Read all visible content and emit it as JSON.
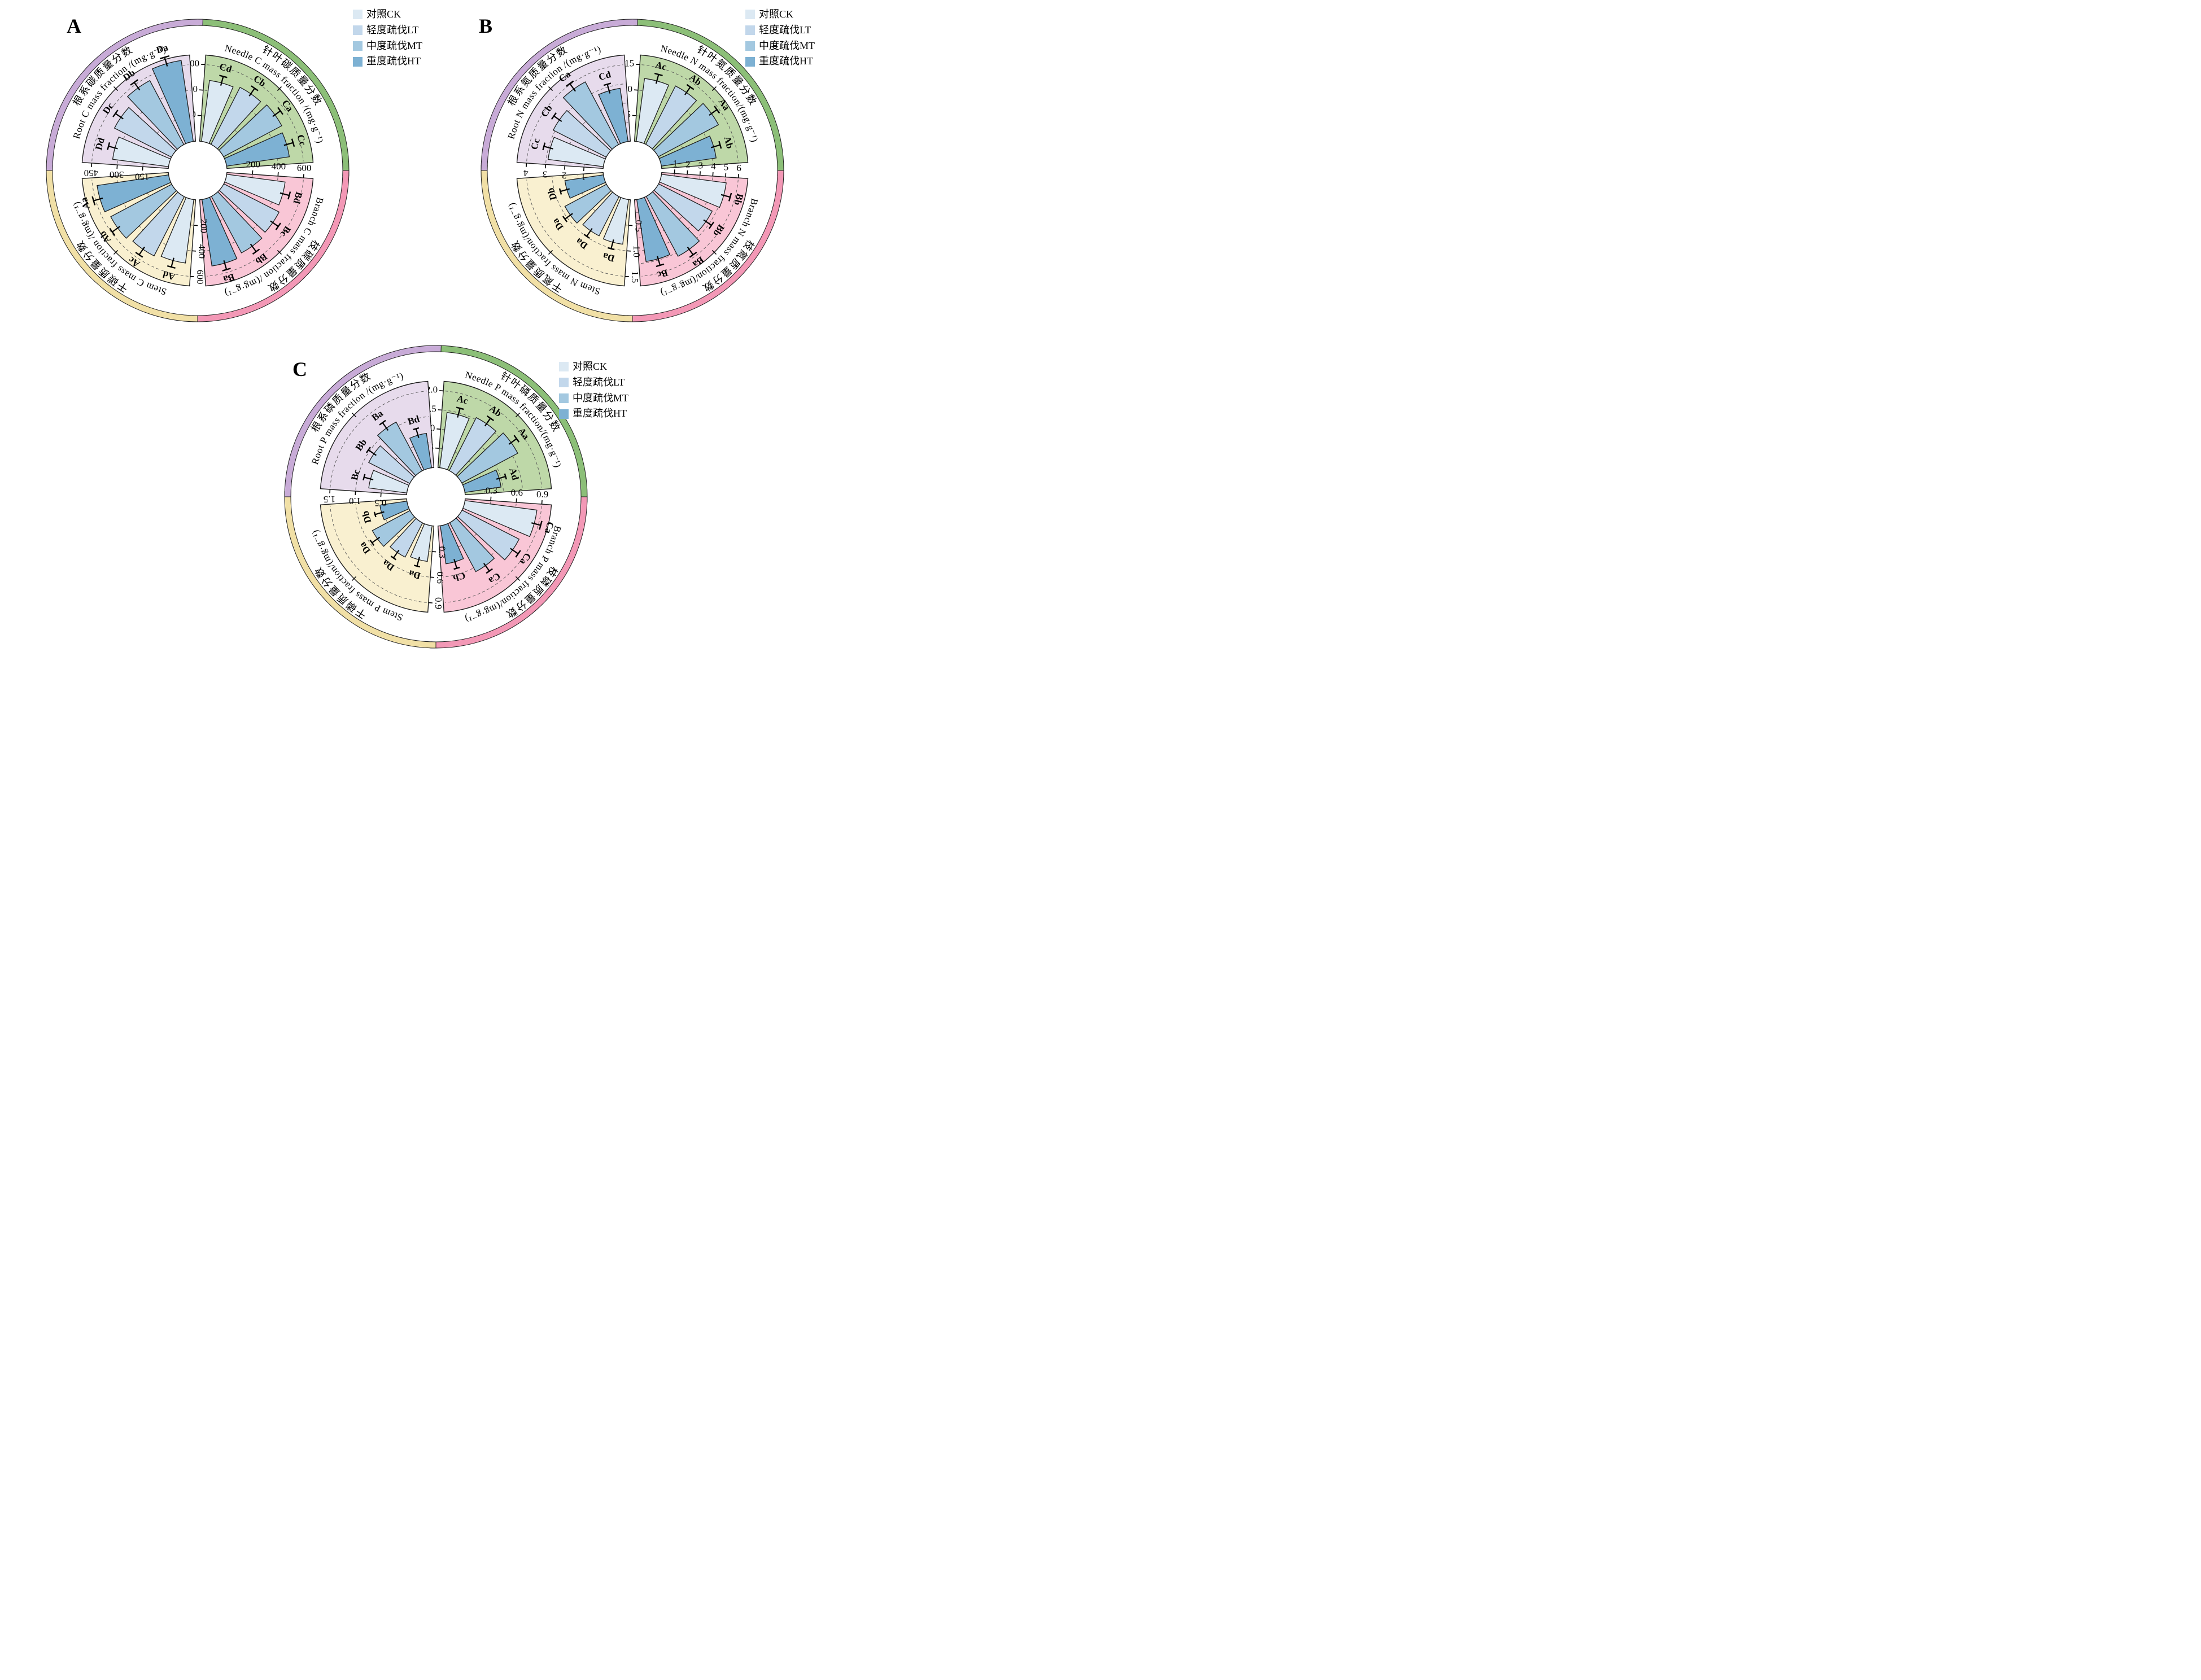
{
  "figure": {
    "panel_labels": [
      "A",
      "B",
      "C"
    ]
  },
  "legend": {
    "items": [
      {
        "code": "CK",
        "label": "对照CK",
        "color": "#dcE9f3"
      },
      {
        "code": "LT",
        "label": "轻度疏伐LT",
        "color": "#c2d7eb"
      },
      {
        "code": "MT",
        "label": "中度疏伐MT",
        "color": "#a3c8e0"
      },
      {
        "code": "HT",
        "label": "重度疏伐HT",
        "color": "#7db1d3"
      }
    ]
  },
  "colors": {
    "bars": [
      "#dce9f3",
      "#c2d7eb",
      "#a3c8e0",
      "#7db1d3"
    ],
    "stroke": "#1c1c1c",
    "grid": "#555555",
    "organs": {
      "needle": {
        "wedge": "#bed8a8",
        "band": "#8cbf78"
      },
      "branch": {
        "wedge": "#f9c6d6",
        "band": "#f398b6"
      },
      "stem": {
        "wedge": "#f9f0d0",
        "band": "#f1e0a6"
      },
      "root": {
        "wedge": "#e7dbec",
        "band": "#c8abd7"
      }
    }
  },
  "chart_data": [
    {
      "type": "polar_bar",
      "panel": "A",
      "element": "C",
      "series": [
        "CK",
        "LT",
        "MT",
        "HT"
      ],
      "sectors": [
        {
          "organ": "needle",
          "label_en": "Needle C mass fraction /(mg·g⁻¹)",
          "label_zh": "针叶碳质量分数",
          "tick_labels": [
            "200",
            "400",
            "600"
          ],
          "tick_values": [
            200,
            400,
            600
          ],
          "axis_max": 600,
          "values": [
            480,
            500,
            515,
            495
          ],
          "letters": [
            "Cd",
            "Cb",
            "Ca",
            "Cc"
          ]
        },
        {
          "organ": "branch",
          "label_en": "Branch C mass fraction /(mg·g⁻¹)",
          "label_zh": "枝碳质量分数",
          "tick_labels": [
            "200",
            "400",
            "600"
          ],
          "tick_values": [
            200,
            400,
            600
          ],
          "axis_max": 600,
          "values": [
            460,
            485,
            500,
            525
          ],
          "letters": [
            "Bd",
            "Bc",
            "Bb",
            "Ba"
          ]
        },
        {
          "organ": "stem",
          "label_en": "Stem C mass fraction /(mg·g⁻¹)",
          "label_zh": "干碳质量分数",
          "tick_labels": [
            "200",
            "400",
            "600"
          ],
          "tick_values": [
            200,
            400,
            600
          ],
          "axis_max": 600,
          "values": [
            500,
            520,
            540,
            565
          ],
          "letters": [
            "Ad",
            "Ac",
            "Ab",
            "Aa"
          ]
        },
        {
          "organ": "root",
          "label_en": "Root C mass fraction /(mg·g⁻¹)",
          "label_zh": "根系碳质量分数",
          "tick_labels": [
            "150",
            "300",
            "450"
          ],
          "tick_values": [
            150,
            300,
            450
          ],
          "axis_max": 450,
          "values": [
            330,
            375,
            425,
            480
          ],
          "letters": [
            "Dd",
            "Dc",
            "Db",
            "Da"
          ]
        }
      ]
    },
    {
      "type": "polar_bar",
      "panel": "B",
      "element": "N",
      "series": [
        "CK",
        "LT",
        "MT",
        "HT"
      ],
      "sectors": [
        {
          "organ": "needle",
          "label_en": "Needle N mass fraction/(mg·g⁻¹)",
          "label_zh": "针叶氮质量分数",
          "tick_labels": [
            "5",
            "10",
            "15"
          ],
          "tick_values": [
            5,
            10,
            15
          ],
          "axis_max": 15,
          "values": [
            12.4,
            12.8,
            13.3,
            10.8
          ],
          "letters": [
            "Ac",
            "Ab",
            "Aa",
            "Ab"
          ]
        },
        {
          "organ": "branch",
          "label_en": "Branch N mass fraction/(mg·g⁻¹)",
          "label_zh": "枝氮质量分数",
          "tick_labels": [
            "1",
            "2",
            "3",
            "4",
            "5",
            "6"
          ],
          "tick_values": [
            1,
            2,
            3,
            4,
            5,
            6
          ],
          "axis_max": 6,
          "values": [
            5.1,
            4.7,
            5.3,
            4.9
          ],
          "letters": [
            "Bb",
            "Bb",
            "Ba",
            "Bc"
          ]
        },
        {
          "organ": "stem",
          "label_en": "Stem N mass fraction/(mg·g⁻¹)",
          "label_zh": "干氮质量分数",
          "tick_labels": [
            "0.5",
            "1.0",
            "1.5"
          ],
          "tick_values": [
            0.5,
            1.0,
            1.5
          ],
          "axis_max": 1.5,
          "values": [
            0.88,
            0.86,
            0.92,
            0.76
          ],
          "letters": [
            "Da",
            "Da",
            "Da",
            "Db"
          ]
        },
        {
          "organ": "root",
          "label_en": "Root N mass fraction /(mg·g⁻¹)",
          "label_zh": "根系氮质量分数",
          "tick_labels": [
            "1",
            "2",
            "3",
            "4"
          ],
          "tick_values": [
            1,
            2,
            3,
            4
          ],
          "axis_max": 4,
          "values": [
            2.9,
            3.1,
            3.7,
            2.8
          ],
          "letters": [
            "Cc",
            "Cb",
            "Ca",
            "Cd"
          ]
        }
      ]
    },
    {
      "type": "polar_bar",
      "panel": "C",
      "element": "P",
      "series": [
        "CK",
        "LT",
        "MT",
        "HT"
      ],
      "sectors": [
        {
          "organ": "needle",
          "label_en": "Needle P mass fraction/(mg·g⁻¹)",
          "label_zh": "针叶磷质量分数",
          "tick_labels": [
            "0.5",
            "1.0",
            "1.5",
            "2.0"
          ],
          "tick_values": [
            0.5,
            1.0,
            1.5,
            2.0
          ],
          "axis_max": 2.0,
          "values": [
            1.45,
            1.55,
            1.65,
            0.95
          ],
          "letters": [
            "Ac",
            "Ab",
            "Aa",
            "Ad"
          ]
        },
        {
          "organ": "branch",
          "label_en": "Branch P mass fraction/(mg·g⁻¹)",
          "label_zh": "枝磷质量分数",
          "tick_labels": [
            "0.3",
            "0.6",
            "0.9"
          ],
          "tick_values": [
            0.3,
            0.6,
            0.9
          ],
          "axis_max": 0.9,
          "values": [
            0.85,
            0.75,
            0.65,
            0.45
          ],
          "letters": [
            "Ca",
            "Ca",
            "Ca",
            "Cb"
          ]
        },
        {
          "organ": "stem",
          "label_en": "Stem P mass fraction/(mg·g⁻¹)",
          "label_zh": "干磷质量分数",
          "tick_labels": [
            "0.3",
            "0.6",
            "0.9"
          ],
          "tick_values": [
            0.3,
            0.6,
            0.9
          ],
          "axis_max": 0.9,
          "values": [
            0.42,
            0.45,
            0.5,
            0.32
          ],
          "letters": [
            "Da",
            "Da",
            "Da",
            "Db"
          ]
        },
        {
          "organ": "root",
          "label_en": "Root P mass fraction /(mg·g⁻¹)",
          "label_zh": "根系磷质量分数",
          "tick_labels": [
            "0.5",
            "1.0",
            "1.5"
          ],
          "tick_values": [
            0.5,
            1.0,
            1.5
          ],
          "axis_max": 1.5,
          "values": [
            0.75,
            0.9,
            1.08,
            0.68
          ],
          "letters": [
            "Bc",
            "Bb",
            "Ba",
            "Bd"
          ]
        }
      ]
    }
  ]
}
